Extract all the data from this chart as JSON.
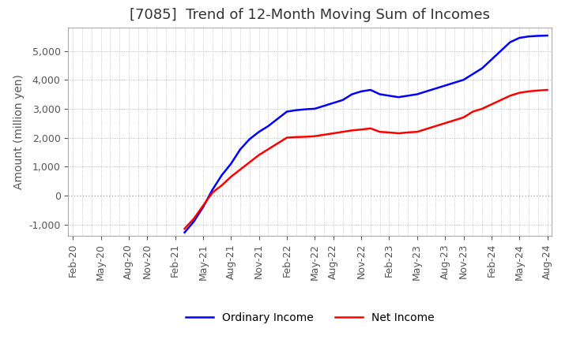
{
  "title": "[7085]  Trend of 12-Month Moving Sum of Incomes",
  "ylabel": "Amount (million yen)",
  "ylim": [
    -1400,
    5800
  ],
  "yticks": [
    -1000,
    0,
    1000,
    2000,
    3000,
    4000,
    5000
  ],
  "legend_labels": [
    "Ordinary Income",
    "Net Income"
  ],
  "line_colors": [
    "#0000ff",
    "#ff0000"
  ],
  "x_tick_labels": [
    "Feb-20",
    "May-20",
    "Aug-20",
    "Nov-20",
    "Feb-21",
    "May-21",
    "Aug-21",
    "Nov-21",
    "Feb-22",
    "May-22",
    "Aug-22",
    "Nov-22",
    "Feb-23",
    "May-23",
    "Aug-23",
    "Nov-23",
    "Feb-24",
    "May-24",
    "Aug-24"
  ],
  "background_color": "#ffffff",
  "grid_color": "#aaaaaa",
  "title_fontsize": 13,
  "label_fontsize": 10,
  "tick_fontsize": 9,
  "ordinary_income": [
    null,
    null,
    null,
    null,
    null,
    null,
    null,
    null,
    null,
    null,
    null,
    null,
    -1280,
    -900,
    -400,
    200,
    700,
    1100,
    1600,
    1950,
    2200,
    2400,
    2650,
    2900,
    2950,
    2980,
    3000,
    3100,
    3200,
    3300,
    3500,
    3600,
    3650,
    3500,
    3450,
    3400,
    3450,
    3500,
    3600,
    3700,
    3800,
    3900,
    4000,
    4200,
    4400,
    4700,
    5000,
    5300,
    5450,
    5500,
    5520,
    5530
  ],
  "net_income": [
    null,
    null,
    null,
    null,
    null,
    null,
    null,
    null,
    null,
    null,
    null,
    null,
    -1150,
    -800,
    -350,
    100,
    350,
    650,
    900,
    1150,
    1400,
    1600,
    1800,
    2000,
    2020,
    2030,
    2050,
    2100,
    2150,
    2200,
    2250,
    2280,
    2320,
    2200,
    2180,
    2150,
    2180,
    2200,
    2300,
    2400,
    2500,
    2600,
    2700,
    2900,
    3000,
    3150,
    3300,
    3450,
    3550,
    3600,
    3630,
    3650
  ]
}
